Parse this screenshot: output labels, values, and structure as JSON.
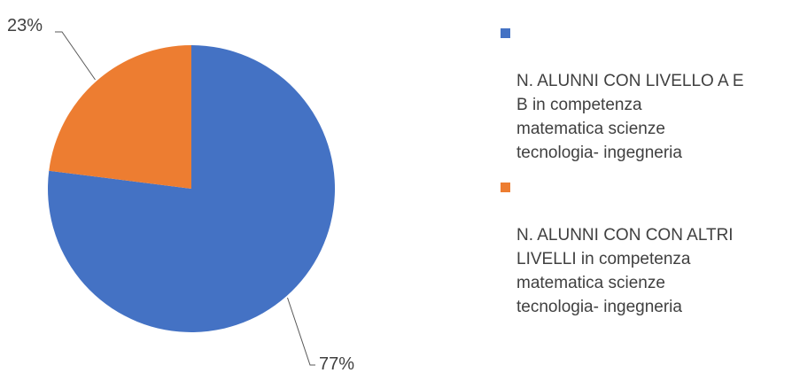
{
  "chart_data": {
    "type": "pie",
    "title": "",
    "legend_position": "right",
    "series": [
      {
        "name": "N. ALUNNI CON LIVELLO A E\nB in competenza\nmatematica scienze\ntecnologia- ingegneria",
        "value": 77,
        "label": "77%",
        "color": "#4472C4"
      },
      {
        "name": "N. ALUNNI CON  CON ALTRI\nLIVELLI in competenza\nmatematica scienze\ntecnologia- ingegneria",
        "value": 23,
        "label": "23%",
        "color": "#ED7D31"
      }
    ]
  }
}
